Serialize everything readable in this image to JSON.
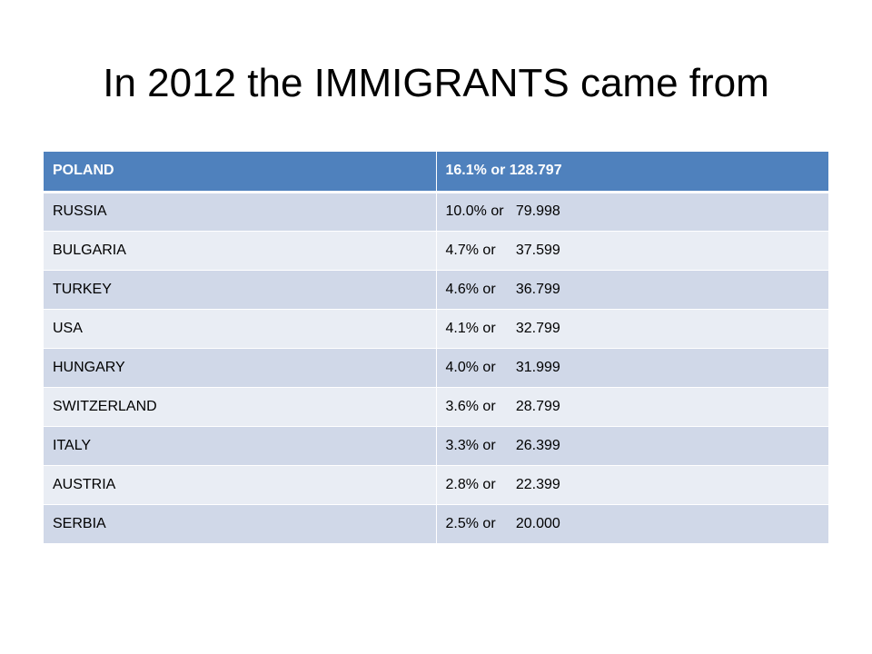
{
  "title": "In 2012 the IMMIGRANTS came from",
  "table": {
    "header": [
      "POLAND",
      "16.1% or 128.797"
    ],
    "rows": [
      [
        "RUSSIA",
        "10.0% or   79.998"
      ],
      [
        "BULGARIA",
        "4.7% or     37.599"
      ],
      [
        "TURKEY",
        "4.6% or     36.799"
      ],
      [
        "USA",
        "4.1% or     32.799"
      ],
      [
        "HUNGARY",
        "4.0% or     31.999"
      ],
      [
        "SWITZERLAND",
        "3.6% or     28.799"
      ],
      [
        "ITALY",
        "3.3% or     26.399"
      ],
      [
        "AUSTRIA",
        "2.8% or     22.399"
      ],
      [
        "SERBIA",
        "2.5% or     20.000"
      ]
    ]
  },
  "colors": {
    "header_bg": "#4f81bd",
    "row_odd_bg": "#d0d8e8",
    "row_even_bg": "#e9edf4"
  }
}
